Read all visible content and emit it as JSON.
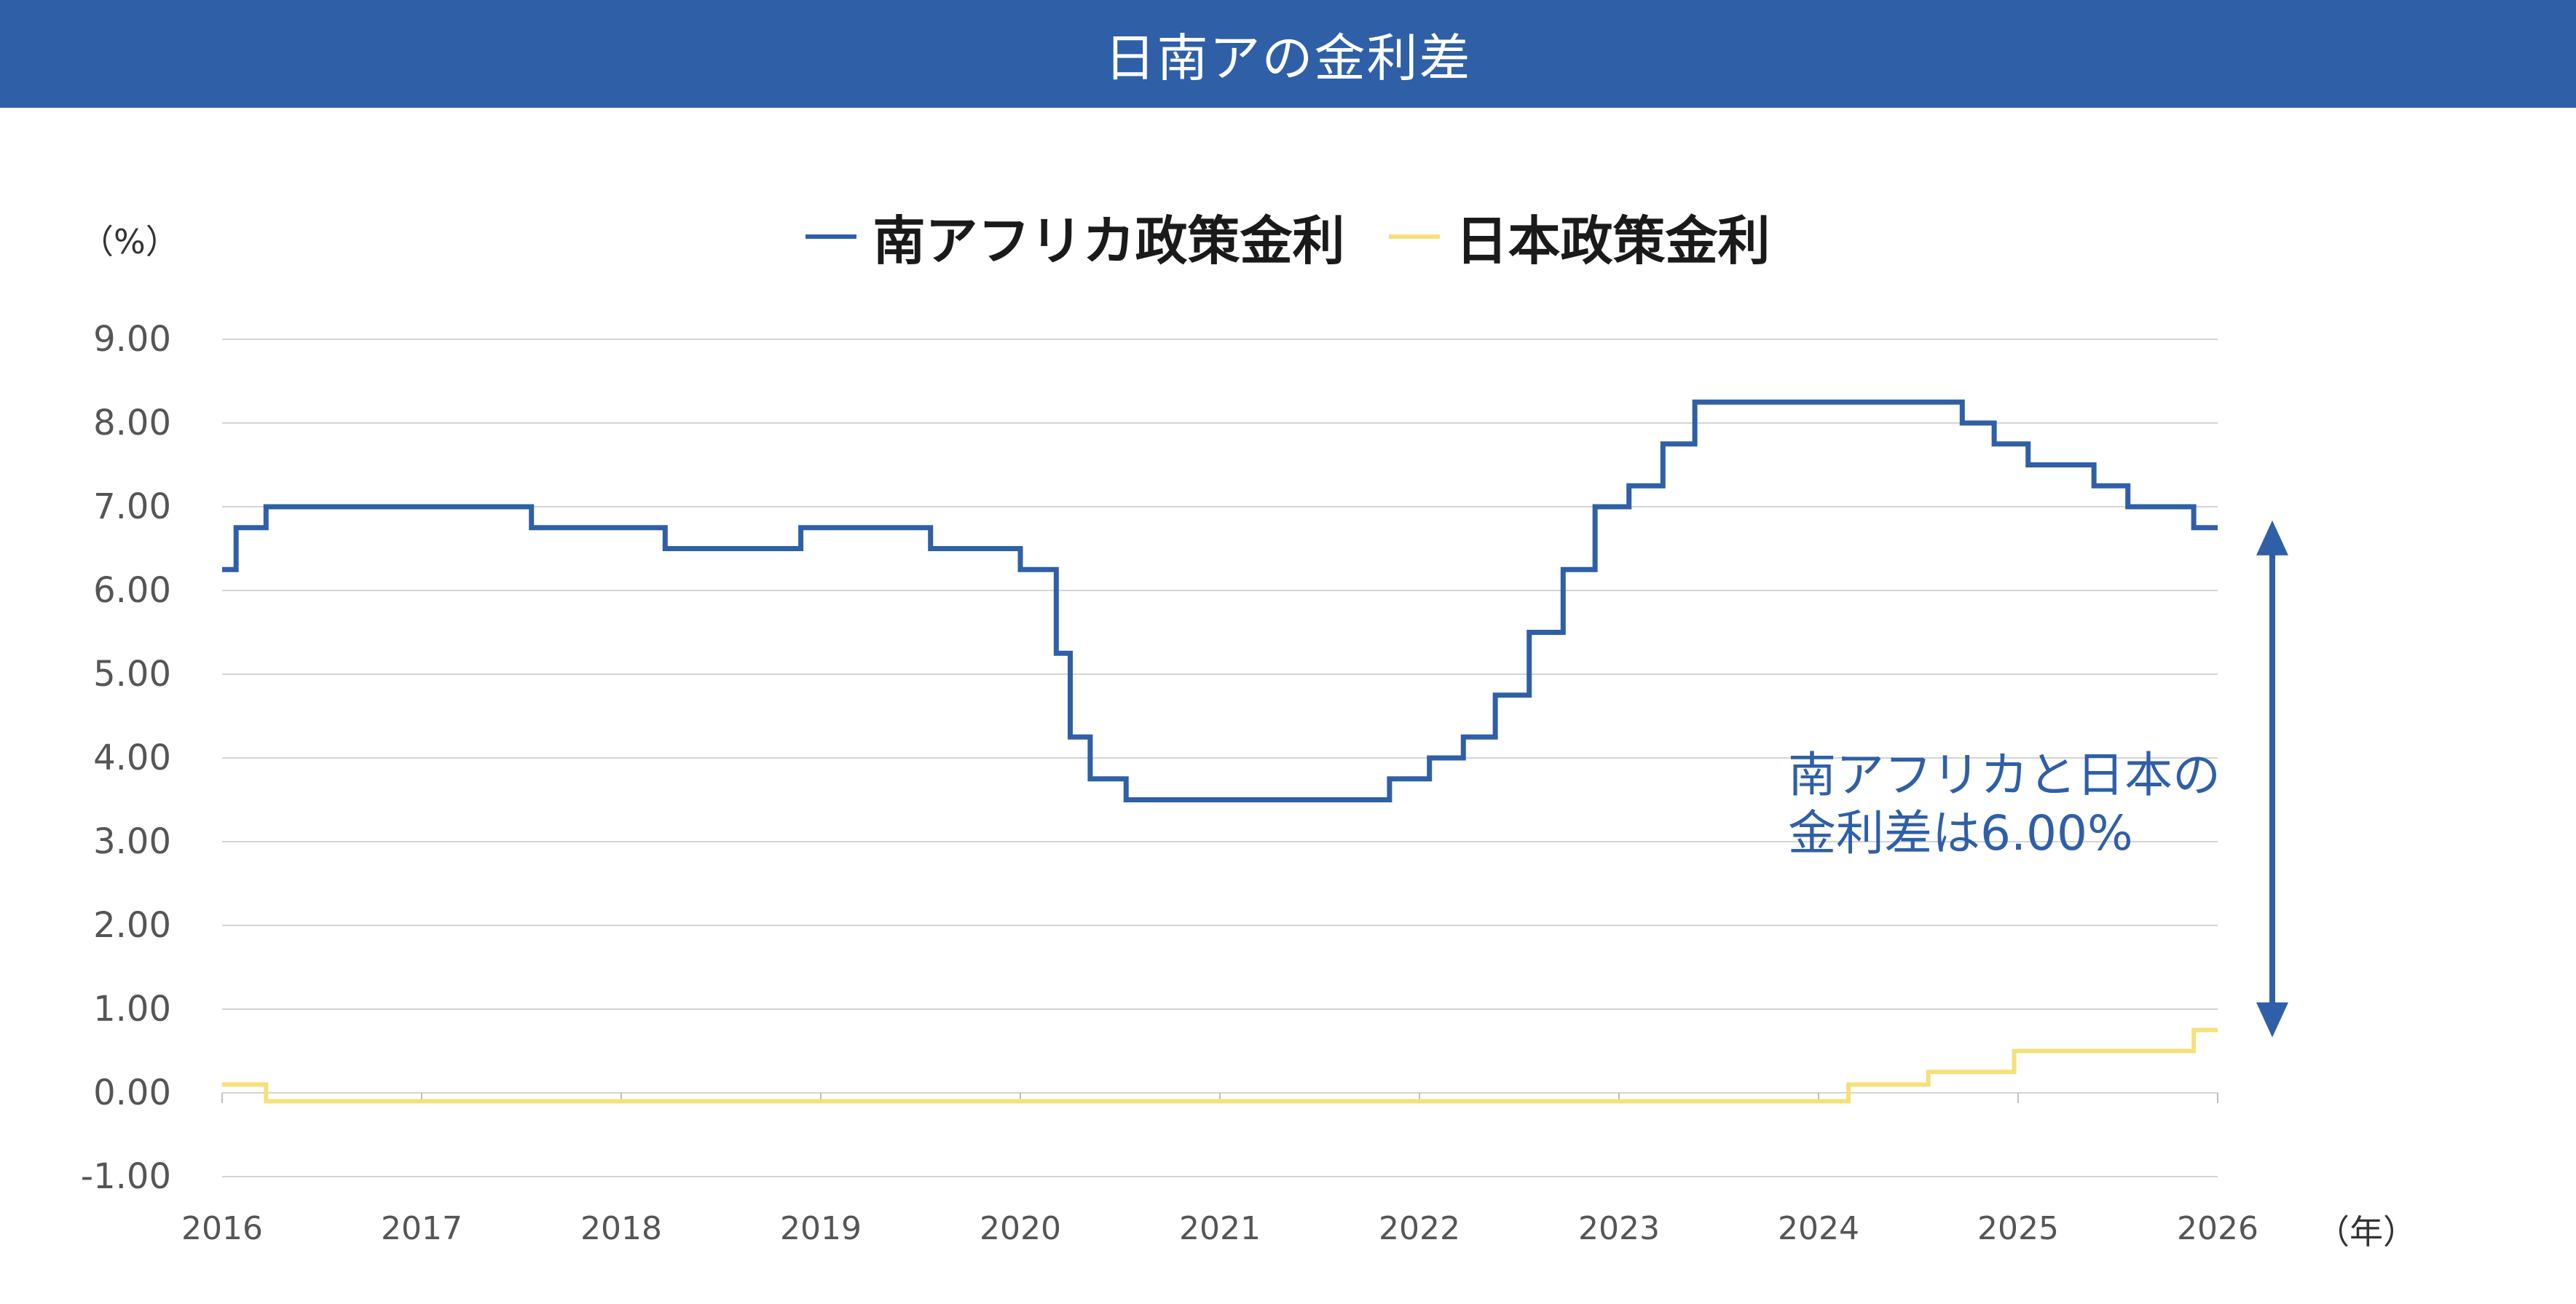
{
  "header": {
    "title": "日南アの金利差"
  },
  "units": {
    "y": "（%）",
    "x": "（年）"
  },
  "annotation": {
    "line1": "南アフリカと日本の",
    "line2": "金利差は6.00%"
  },
  "colors": {
    "header": "#2f5fa7",
    "sa": "#2f5fa7",
    "jp": "#f6e07a",
    "grid": "#d4d4d4"
  },
  "chart_data": {
    "type": "line",
    "step": true,
    "legend_position": "top-center",
    "grid": true,
    "ylim": [
      -1,
      9
    ],
    "xlim": [
      2016,
      2026
    ],
    "yticks": [
      "9.00",
      "8.00",
      "7.00",
      "6.00",
      "5.00",
      "4.00",
      "3.00",
      "2.00",
      "1.00",
      "0.00",
      "-1.00"
    ],
    "yticks_values": [
      9,
      8,
      7,
      6,
      5,
      4,
      3,
      2,
      1,
      0,
      -1
    ],
    "xticks": [
      "2016",
      "2017",
      "2018",
      "2019",
      "2020",
      "2021",
      "2022",
      "2023",
      "2024",
      "2025",
      "2026"
    ],
    "xticks_values": [
      2016,
      2017,
      2018,
      2019,
      2020,
      2021,
      2022,
      2023,
      2024,
      2025,
      2026
    ],
    "series": [
      {
        "name": "南アフリカ政策金利",
        "color": "#2f5fa7",
        "points": [
          [
            2016.0,
            6.25
          ],
          [
            2016.07,
            6.75
          ],
          [
            2016.22,
            7.0
          ],
          [
            2017.55,
            6.75
          ],
          [
            2018.22,
            6.5
          ],
          [
            2018.9,
            6.75
          ],
          [
            2019.55,
            6.5
          ],
          [
            2020.0,
            6.25
          ],
          [
            2020.18,
            5.25
          ],
          [
            2020.25,
            4.25
          ],
          [
            2020.35,
            3.75
          ],
          [
            2020.53,
            3.5
          ],
          [
            2021.85,
            3.75
          ],
          [
            2022.05,
            4.0
          ],
          [
            2022.22,
            4.25
          ],
          [
            2022.38,
            4.75
          ],
          [
            2022.55,
            5.5
          ],
          [
            2022.72,
            6.25
          ],
          [
            2022.88,
            7.0
          ],
          [
            2023.05,
            7.25
          ],
          [
            2023.22,
            7.75
          ],
          [
            2023.38,
            8.25
          ],
          [
            2024.72,
            8.0
          ],
          [
            2024.88,
            7.75
          ],
          [
            2025.05,
            7.5
          ],
          [
            2025.38,
            7.25
          ],
          [
            2025.55,
            7.0
          ],
          [
            2025.88,
            6.75
          ],
          [
            2026.0,
            6.75
          ]
        ]
      },
      {
        "name": "日本政策金利",
        "color": "#f6e07a",
        "points": [
          [
            2016.0,
            0.1
          ],
          [
            2016.22,
            -0.1
          ],
          [
            2024.15,
            0.1
          ],
          [
            2024.55,
            0.25
          ],
          [
            2024.98,
            0.5
          ],
          [
            2025.88,
            0.75
          ],
          [
            2026.0,
            0.75
          ]
        ]
      }
    ],
    "annotations": [
      {
        "text": "南アフリカと日本の金利差は6.00%",
        "type": "double-arrow",
        "from": 0.75,
        "to": 6.75
      }
    ]
  }
}
